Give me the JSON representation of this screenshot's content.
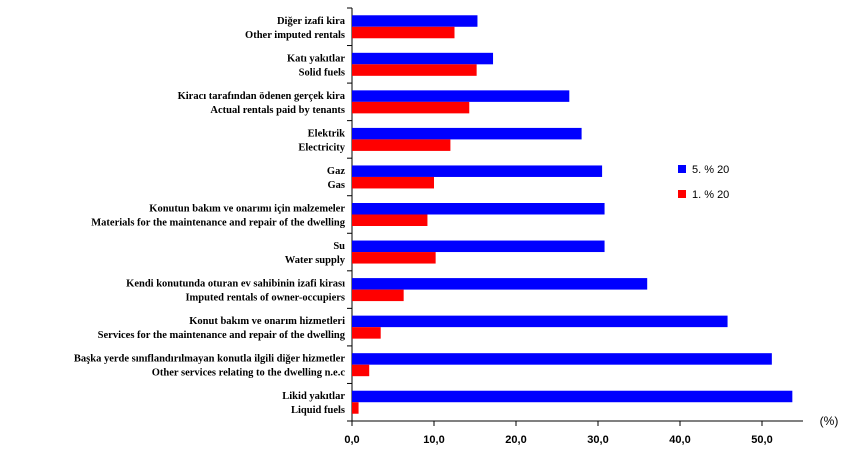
{
  "chart_data": {
    "type": "bar",
    "orientation": "horizontal",
    "categories": [
      [
        "Diğer izafi kira",
        "Other imputed rentals"
      ],
      [
        "Katı yakıtlar",
        "Solid fuels"
      ],
      [
        "Kiracı tarafından ödenen gerçek kira",
        "Actual rentals paid by tenants"
      ],
      [
        "Elektrik",
        "Electricity"
      ],
      [
        "Gaz",
        "Gas"
      ],
      [
        "Konutun bakım ve onarımı için malzemeler",
        "Materials for the maintenance and repair of the dwelling"
      ],
      [
        "Su",
        "Water supply"
      ],
      [
        "Kendi konutunda oturan ev sahibinin izafi kirası",
        "Imputed rentals of owner-occupiers"
      ],
      [
        "Konut bakım ve onarım hizmetleri",
        "Services for the maintenance and repair of the dwelling"
      ],
      [
        "Başka yerde sınıflandırılmayan konutla ilgili diğer hizmetler",
        "Other services relating to the dwelling n.e.c"
      ],
      [
        "Likid yakıtlar",
        "Liquid fuels"
      ]
    ],
    "series": [
      {
        "name": "5. % 20",
        "color": "#0000ff",
        "values": [
          15.3,
          17.2,
          26.5,
          28.0,
          30.5,
          30.8,
          30.8,
          36.0,
          45.8,
          51.2,
          53.7
        ]
      },
      {
        "name": "1. % 20",
        "color": "#ff0000",
        "values": [
          12.5,
          15.2,
          14.3,
          12.0,
          10.0,
          9.2,
          10.2,
          6.3,
          3.5,
          2.1,
          0.8
        ]
      }
    ],
    "xlim": [
      0,
      55
    ],
    "xticks": [
      "0,0",
      "10,0",
      "20,0",
      "30,0",
      "40,0",
      "50,0"
    ],
    "xlabel": "(%)",
    "legend_position": "right",
    "grid": false
  }
}
